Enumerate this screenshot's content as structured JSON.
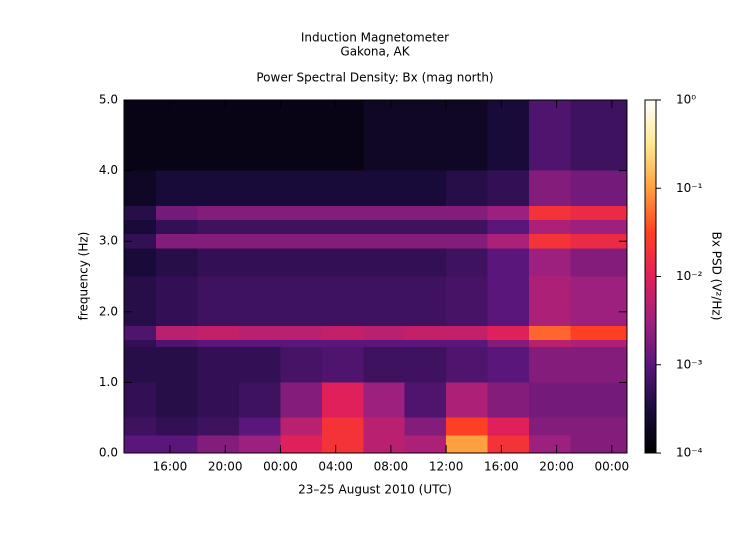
{
  "chart_data": {
    "type": "spectrogram",
    "title": "Induction Magnetometer",
    "subtitle": "Gakona, AK",
    "plot_title": "Power Spectral Density: Bx (mag north)",
    "xlabel": "23–25 August 2010 (UTC)",
    "ylabel": "frequency (Hz)",
    "colorbar_label": "Bx PSD (V²/Hz)",
    "xlim": [
      12.67,
      49.1
    ],
    "xticks": [
      {
        "value": 16,
        "label": "16:00"
      },
      {
        "value": 20,
        "label": "20:00"
      },
      {
        "value": 24,
        "label": "00:00"
      },
      {
        "value": 28,
        "label": "04:00"
      },
      {
        "value": 32,
        "label": "08:00"
      },
      {
        "value": 36,
        "label": "12:00"
      },
      {
        "value": 40,
        "label": "16:00"
      },
      {
        "value": 44,
        "label": "20:00"
      },
      {
        "value": 48,
        "label": "00:00"
      }
    ],
    "ylim": [
      0,
      5
    ],
    "yticks": [
      {
        "value": 0,
        "label": "0.0"
      },
      {
        "value": 1,
        "label": "1.0"
      },
      {
        "value": 2,
        "label": "2.0"
      },
      {
        "value": 3,
        "label": "3.0"
      },
      {
        "value": 4,
        "label": "4.0"
      },
      {
        "value": 5,
        "label": "5.0"
      }
    ],
    "clim": [
      0.0001,
      1
    ],
    "clog": true,
    "cticks": [
      {
        "value": 0.0001,
        "label": "10⁻⁴"
      },
      {
        "value": 0.001,
        "label": "10⁻³"
      },
      {
        "value": 0.01,
        "label": "10⁻²"
      },
      {
        "value": 0.1,
        "label": "10⁻¹"
      },
      {
        "value": 1,
        "label": "10⁰"
      }
    ],
    "colormap": [
      "#000000",
      "#1a0c3c",
      "#5a167a",
      "#a0207e",
      "#e0205a",
      "#ff4020",
      "#ffa040",
      "#ffe890",
      "#ffffff"
    ],
    "time_bins": [
      12.67,
      15,
      18,
      21,
      24,
      27,
      30,
      33,
      36,
      39,
      42,
      45,
      49.1
    ],
    "frequency_bins": [
      0,
      0.25,
      0.5,
      1.0,
      1.5,
      1.6,
      1.8,
      2.5,
      2.9,
      3.1,
      3.3,
      3.5,
      4.0,
      5.0
    ],
    "psd": [
      [
        0.001,
        0.001,
        0.002,
        0.003,
        0.01,
        0.02,
        0.005,
        0.004,
        0.1,
        0.02,
        0.003,
        0.002
      ],
      [
        0.0006,
        0.0005,
        0.0006,
        0.001,
        0.005,
        0.02,
        0.005,
        0.002,
        0.03,
        0.01,
        0.002,
        0.002
      ],
      [
        0.0005,
        0.0004,
        0.0005,
        0.0006,
        0.002,
        0.01,
        0.003,
        0.0008,
        0.004,
        0.002,
        0.0015,
        0.0015
      ],
      [
        0.0004,
        0.0004,
        0.0005,
        0.0005,
        0.0007,
        0.0008,
        0.0006,
        0.0006,
        0.0008,
        0.001,
        0.002,
        0.002
      ],
      [
        0.0005,
        0.0008,
        0.001,
        0.001,
        0.001,
        0.001,
        0.001,
        0.001,
        0.001,
        0.002,
        0.005,
        0.004
      ],
      [
        0.0008,
        0.005,
        0.006,
        0.005,
        0.005,
        0.006,
        0.005,
        0.006,
        0.006,
        0.01,
        0.05,
        0.03
      ],
      [
        0.0004,
        0.0005,
        0.0006,
        0.0006,
        0.0006,
        0.0006,
        0.0006,
        0.0006,
        0.0007,
        0.001,
        0.004,
        0.003
      ],
      [
        0.0003,
        0.0004,
        0.0005,
        0.0005,
        0.0005,
        0.0005,
        0.0005,
        0.0005,
        0.0006,
        0.001,
        0.003,
        0.002
      ],
      [
        0.0005,
        0.002,
        0.002,
        0.002,
        0.002,
        0.002,
        0.002,
        0.002,
        0.002,
        0.004,
        0.02,
        0.015
      ],
      [
        0.0003,
        0.0005,
        0.0006,
        0.0006,
        0.0006,
        0.0006,
        0.0006,
        0.0006,
        0.0006,
        0.001,
        0.004,
        0.003
      ],
      [
        0.0004,
        0.0015,
        0.002,
        0.002,
        0.002,
        0.002,
        0.002,
        0.002,
        0.002,
        0.003,
        0.02,
        0.015
      ],
      [
        0.0002,
        0.0003,
        0.0003,
        0.0003,
        0.0003,
        0.0003,
        0.0003,
        0.0003,
        0.0004,
        0.0005,
        0.002,
        0.0015
      ],
      [
        0.00015,
        0.00015,
        0.00015,
        0.00015,
        0.00015,
        0.00015,
        0.0002,
        0.0002,
        0.0002,
        0.0003,
        0.0008,
        0.0006
      ]
    ]
  }
}
